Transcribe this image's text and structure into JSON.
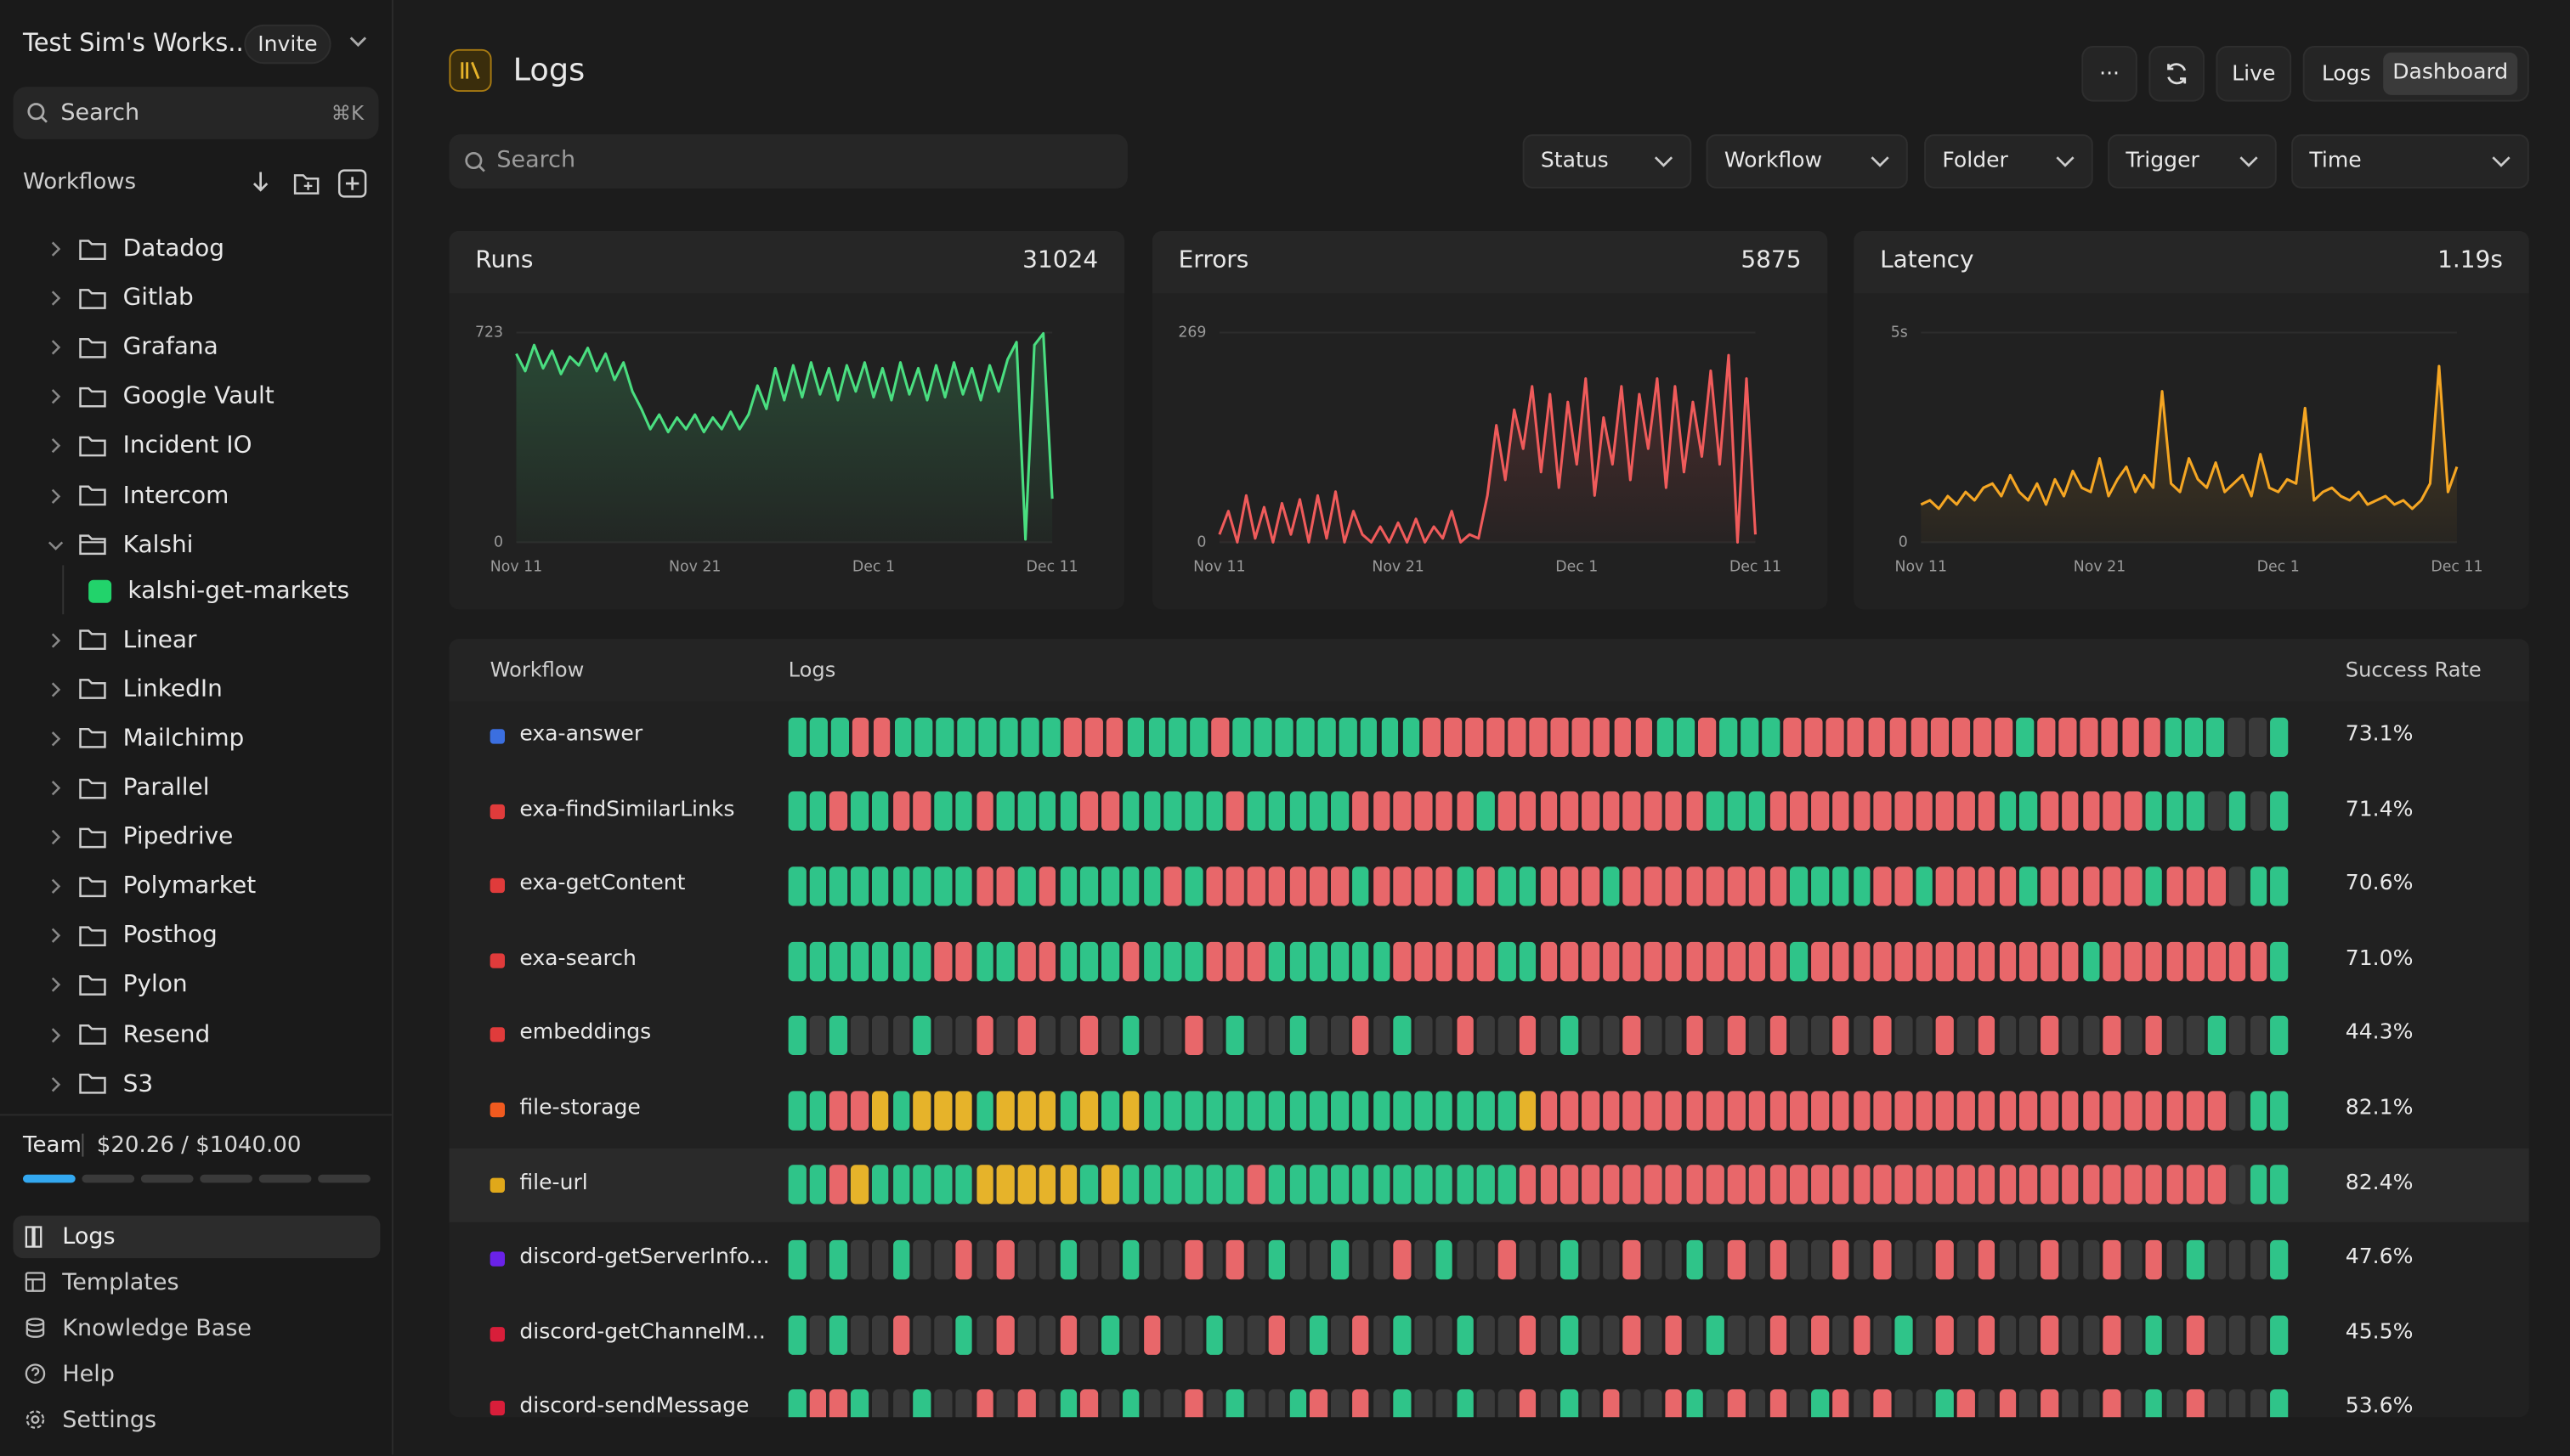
{
  "workspace": {
    "name": "Test Sim's Works...",
    "invite": "Invite"
  },
  "sidebar": {
    "search": "Search",
    "shortcut": "⌘K",
    "section": "Workflows",
    "folders": [
      {
        "name": "Datadog"
      },
      {
        "name": "Gitlab"
      },
      {
        "name": "Grafana"
      },
      {
        "name": "Google Vault"
      },
      {
        "name": "Incident IO"
      },
      {
        "name": "Intercom"
      },
      {
        "name": "Kalshi",
        "workflows": [
          "kalshi-get-markets"
        ]
      },
      {
        "name": "Linear"
      },
      {
        "name": "LinkedIn"
      },
      {
        "name": "Mailchimp"
      },
      {
        "name": "Parallel"
      },
      {
        "name": "Pipedrive"
      },
      {
        "name": "Polymarket"
      },
      {
        "name": "Posthog"
      },
      {
        "name": "Pylon"
      },
      {
        "name": "Resend"
      },
      {
        "name": "S3"
      }
    ],
    "plan": "Team",
    "usage": "$20.26 / $1040.00",
    "nav": [
      "Logs",
      "Templates",
      "Knowledge Base",
      "Help",
      "Settings"
    ]
  },
  "header": {
    "title": "Logs",
    "more": "···",
    "live": "Live",
    "views": [
      "Logs",
      "Dashboard"
    ]
  },
  "filters": {
    "search": "Search",
    "dropdowns": [
      "Status",
      "Workflow",
      "Folder",
      "Trigger",
      "Time"
    ]
  },
  "chart_data": [
    {
      "type": "line",
      "title": "Runs",
      "total": "31024",
      "color": "#4ade80",
      "categories": [
        "Nov 11",
        null,
        null,
        null,
        null,
        null,
        null,
        null,
        null,
        null,
        null,
        null,
        null,
        null,
        null,
        null,
        null,
        null,
        null,
        null,
        "Nov 21",
        null,
        null,
        null,
        null,
        null,
        null,
        null,
        null,
        null,
        null,
        null,
        null,
        null,
        null,
        null,
        null,
        null,
        null,
        null,
        "Dec 1",
        null,
        null,
        null,
        null,
        null,
        null,
        null,
        null,
        null,
        null,
        null,
        null,
        null,
        null,
        null,
        null,
        null,
        null,
        null,
        "Dec 11"
      ],
      "values": [
        650,
        590,
        680,
        600,
        660,
        580,
        640,
        610,
        670,
        590,
        650,
        560,
        620,
        520,
        460,
        390,
        440,
        380,
        430,
        390,
        440,
        380,
        430,
        390,
        450,
        390,
        440,
        540,
        460,
        600,
        490,
        610,
        500,
        620,
        510,
        600,
        490,
        610,
        520,
        620,
        500,
        600,
        490,
        620,
        510,
        600,
        490,
        610,
        500,
        620,
        510,
        600,
        490,
        610,
        520,
        630,
        690,
        10,
        680,
        720,
        150
      ],
      "ylim": [
        0,
        723
      ],
      "yticks": [
        0,
        723
      ]
    },
    {
      "type": "line",
      "title": "Errors",
      "total": "5875",
      "color": "#ef5b5b",
      "categories": [
        "Nov 11",
        null,
        null,
        null,
        null,
        null,
        null,
        null,
        null,
        null,
        null,
        null,
        null,
        null,
        null,
        null,
        null,
        null,
        null,
        null,
        "Nov 21",
        null,
        null,
        null,
        null,
        null,
        null,
        null,
        null,
        null,
        null,
        null,
        null,
        null,
        null,
        null,
        null,
        null,
        null,
        null,
        "Dec 1",
        null,
        null,
        null,
        null,
        null,
        null,
        null,
        null,
        null,
        null,
        null,
        null,
        null,
        null,
        null,
        null,
        null,
        null,
        null,
        "Dec 11"
      ],
      "values": [
        10,
        40,
        0,
        60,
        5,
        45,
        0,
        50,
        10,
        55,
        0,
        60,
        5,
        65,
        0,
        40,
        10,
        0,
        20,
        0,
        25,
        0,
        30,
        0,
        20,
        5,
        40,
        0,
        10,
        5,
        60,
        150,
        80,
        170,
        120,
        200,
        90,
        190,
        70,
        180,
        100,
        210,
        60,
        160,
        100,
        200,
        80,
        190,
        120,
        210,
        70,
        200,
        90,
        180,
        110,
        220,
        100,
        240,
        0,
        210,
        10
      ],
      "ylim": [
        0,
        269
      ],
      "yticks": [
        0,
        269
      ]
    },
    {
      "type": "line",
      "title": "Latency",
      "total": "1.19s",
      "color": "#f5a623",
      "categories": [
        "Nov 11",
        null,
        null,
        null,
        null,
        null,
        null,
        null,
        null,
        null,
        null,
        null,
        null,
        null,
        null,
        null,
        null,
        null,
        null,
        null,
        "Nov 21",
        null,
        null,
        null,
        null,
        null,
        null,
        null,
        null,
        null,
        null,
        null,
        null,
        null,
        null,
        null,
        null,
        null,
        null,
        null,
        "Dec 1",
        null,
        null,
        null,
        null,
        null,
        null,
        null,
        null,
        null,
        null,
        null,
        null,
        null,
        null,
        null,
        null,
        null,
        null,
        null,
        "Dec 11"
      ],
      "values": [
        0.9,
        1.0,
        0.8,
        1.1,
        0.9,
        1.2,
        1.0,
        1.3,
        1.4,
        1.1,
        1.6,
        1.2,
        1.0,
        1.4,
        0.9,
        1.5,
        1.1,
        1.7,
        1.3,
        1.2,
        2.0,
        1.1,
        1.5,
        1.8,
        1.2,
        1.6,
        1.3,
        3.6,
        1.4,
        1.2,
        2.0,
        1.5,
        1.3,
        1.9,
        1.2,
        1.4,
        1.6,
        1.1,
        2.1,
        1.3,
        1.2,
        1.5,
        1.4,
        3.2,
        1.0,
        1.2,
        1.3,
        1.1,
        1.0,
        1.2,
        0.9,
        1.0,
        1.1,
        0.9,
        1.0,
        0.8,
        1.0,
        1.4,
        4.2,
        1.2,
        1.8
      ],
      "ylim": [
        0,
        5
      ],
      "yticks": [
        0,
        {
          "value": 5,
          "label": "5s"
        }
      ]
    }
  ],
  "table": {
    "columns": [
      "Workflow",
      "Logs",
      "Success Rate"
    ],
    "status_colors": {
      "g": "#2fc489",
      "r": "#e8676a",
      "y": "#e6b32a",
      "n": "#3a3a3a"
    },
    "rows": [
      {
        "name": "exa-answer",
        "color": "#3b6fe0",
        "logs": "gggrrggggggggrrrggggrgggggggggrrrrrrrrrrrggrgggrrrrrrrrrrrgrrrrrrgggnng",
        "rate": "73.1%"
      },
      {
        "name": "exa-findSimilarLinks",
        "color": "#e03b3b",
        "logs": "ggrggrrggrggggrrgggggrgggggrrrrrrgrrrrrrrrrrgggrrrrrrrrrrrggrrrrrgggngng",
        "rate": "71.4%"
      },
      {
        "name": "exa-getContent",
        "color": "#e03b3b",
        "logs": "gggggggggrrgrgggggrgrrrrrrrgrrrrgrggrrrgrrrrrrrrggggrrgrrrrgrrrrrgrrrngg",
        "rate": "70.6%"
      },
      {
        "name": "exa-search",
        "color": "#e03b3b",
        "logs": "gggggggrrggrrgggrgggrrrggggggrrrrrggrrrrrrrrrrrrgrrrrrrrrrrrrrgrrrrrrrrg",
        "rate": "71.0%"
      },
      {
        "name": "embeddings",
        "color": "#e03b3b",
        "logs": "gngnnngnnrnrnnrngnnrngnngnnrngnnrnnrngnnrnnrnrnrnnrnrnnrnrnnrnnrnrnngnng",
        "rate": "44.3%"
      },
      {
        "name": "file-storage",
        "color": "#f05a1f",
        "logs": "ggrrygyyygyyygygyggggggggggggggggggyrrrrrrrrrrrrrrrrrrrrrrrrrrrrrrrrrngg",
        "rate": "82.1%"
      },
      {
        "name": "file-url",
        "color": "#e0a81a",
        "logs": "ggrygggggyyyyygyggggggrggggggggggggrrrrrrrrrrrrrrrrrrrrrrrrrrrrrrrrrrngg",
        "rate": "82.4%"
      },
      {
        "name": "discord-getServerInfo...",
        "color": "#6a22e8",
        "logs": "gngnngnnrnrnngnngnnrnrngnngnnrngnnrnngnnrnngnrnrnnrnrnnrnrnnrnnrnrngnnng",
        "rate": "47.6%"
      },
      {
        "name": "discord-getChannelM...",
        "color": "#d81e3a",
        "logs": "gngnnrnngnrnnrngnrnngnnrngnrngnngnnrngnnrnrngnnrnrnrngnrnrnnrnnrngnrnnng",
        "rate": "45.5%"
      },
      {
        "name": "discord-sendMessage",
        "color": "#d81e3a",
        "logs": "grrgnngnnrnrngrngnnrngnngrnrngnngnnrngnrnnrgnrnrngrnrnngrnrnrnnrngnrnnng",
        "rate": "53.6%"
      }
    ]
  }
}
